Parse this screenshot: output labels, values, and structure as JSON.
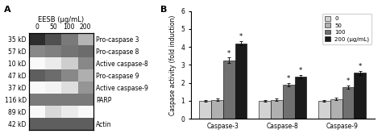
{
  "chart_data": [
    {
      "type": "heatmap",
      "title": "EESB (μg/mL)",
      "annotations": [
        "A"
      ],
      "x": [
        "0",
        "50",
        "100",
        "200"
      ],
      "categories": [
        "35 kD",
        "57 kD",
        "10 kD",
        "47 kD",
        "37 kD",
        "116 kD",
        "89 kD",
        "42 kD"
      ],
      "row_labels": [
        "Pro-caspase 3",
        "Pro-caspase 8",
        "Active caspase-8",
        "Pro-caspase 9",
        "Active caspase-9",
        "PARP",
        null,
        "Actin"
      ],
      "cells": [
        [
          0.85,
          0.75,
          0.6,
          0.4
        ],
        [
          0.55,
          0.58,
          0.62,
          0.65
        ],
        [
          0.05,
          0.15,
          0.3,
          0.55
        ],
        [
          0.7,
          0.65,
          0.55,
          0.42
        ],
        [
          0.05,
          0.1,
          0.22,
          0.5
        ],
        [
          0.6,
          0.6,
          0.6,
          0.6
        ],
        [
          0.05,
          0.25,
          0.15,
          0.05
        ],
        [
          0.7,
          0.7,
          0.7,
          0.7
        ]
      ],
      "color_range": [
        0,
        1
      ]
    },
    {
      "type": "bar",
      "annotations": [
        "B"
      ],
      "categories": [
        "Caspase-3",
        "Caspase-8",
        "Caspase-9"
      ],
      "ylabel": "Caspase activity (fold induction)",
      "ylim": [
        0,
        6
      ],
      "yticks": [
        0,
        1,
        2,
        3,
        4,
        5,
        6
      ],
      "legend": "upper right",
      "series": [
        {
          "name": "0",
          "color": "#d3d3d3",
          "values": [
            1.0,
            1.0,
            1.0
          ],
          "errors": [
            0.05,
            0.05,
            0.05
          ],
          "marks": [
            null,
            null,
            null
          ]
        },
        {
          "name": "50",
          "color": "#b0b0b0",
          "values": [
            1.05,
            1.05,
            1.1
          ],
          "errors": [
            0.08,
            0.06,
            0.07
          ],
          "marks": [
            null,
            null,
            null
          ]
        },
        {
          "name": "100",
          "color": "#707070",
          "values": [
            3.25,
            1.9,
            1.75
          ],
          "errors": [
            0.15,
            0.1,
            0.1
          ],
          "marks": [
            "*",
            "*",
            "*"
          ]
        },
        {
          "name": "200 (μg/mL)",
          "color": "#1a1a1a",
          "values": [
            4.2,
            2.35,
            2.55
          ],
          "errors": [
            0.12,
            0.1,
            0.12
          ],
          "marks": [
            "*",
            "*",
            "*"
          ]
        }
      ]
    }
  ]
}
